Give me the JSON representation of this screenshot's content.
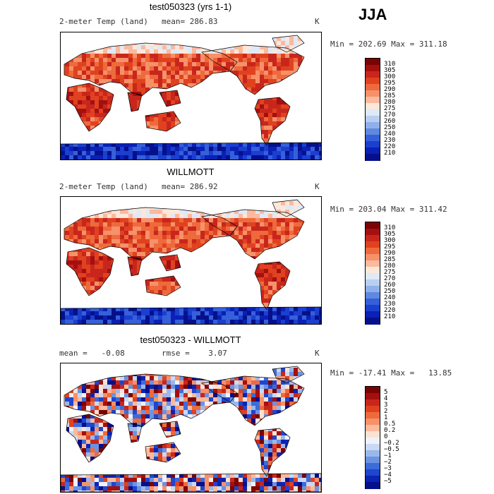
{
  "season": "JJA",
  "panels": [
    {
      "title": "test050323 (yrs 1-1)",
      "left_label": "2-meter Temp (land)",
      "stat1": "mean=  286.83",
      "stat2": "",
      "units": "K",
      "minmax": "Min = 202.69 Max = 311.18",
      "kind": "abs",
      "colorbar_labels": [
        "310",
        "305",
        "300",
        "295",
        "290",
        "285",
        "280",
        "275",
        "270",
        "260",
        "250",
        "240",
        "230",
        "220",
        "210"
      ]
    },
    {
      "title": "WILLMOTT",
      "left_label": "2-meter Temp (land)",
      "stat1": "mean=  286.92",
      "stat2": "",
      "units": "K",
      "minmax": "Min = 203.04 Max = 311.42",
      "kind": "abs",
      "colorbar_labels": [
        "310",
        "305",
        "300",
        "295",
        "290",
        "285",
        "280",
        "275",
        "270",
        "260",
        "250",
        "240",
        "230",
        "220",
        "210"
      ]
    },
    {
      "title": "test050323 - WILLMOTT",
      "left_label": "mean =   -0.08",
      "stat1": "rmse =    3.07",
      "stat2": "",
      "units": "K",
      "minmax": "Min = -17.41 Max =   13.85",
      "kind": "diff",
      "colorbar_labels": [
        "5",
        "4",
        "3",
        "2",
        "1",
        "0.5",
        "0.2",
        "0",
        "−0.2",
        "−0.5",
        "−1",
        "−2",
        "−3",
        "−4",
        "−5"
      ]
    }
  ],
  "colors": {
    "abs_scale": [
      "#7a0403",
      "#a50f0f",
      "#c8261d",
      "#e0421f",
      "#ee6a3c",
      "#f6916a",
      "#fbb99d",
      "#fde7d9",
      "#dfe9f8",
      "#b9cff1",
      "#8fb0ea",
      "#5f88e0",
      "#3560d9",
      "#1b3fcf",
      "#0a20b7",
      "#05108a"
    ],
    "diff_scale": [
      "#7a0403",
      "#a50f0f",
      "#c8261d",
      "#e0421f",
      "#ee6a3c",
      "#f6916a",
      "#fbb99d",
      "#fde2d2",
      "#eef2fb",
      "#c9d9f3",
      "#9bb8ec",
      "#6a93e2",
      "#3d6bd9",
      "#1f46cf",
      "#0c24b2",
      "#05108a"
    ]
  }
}
